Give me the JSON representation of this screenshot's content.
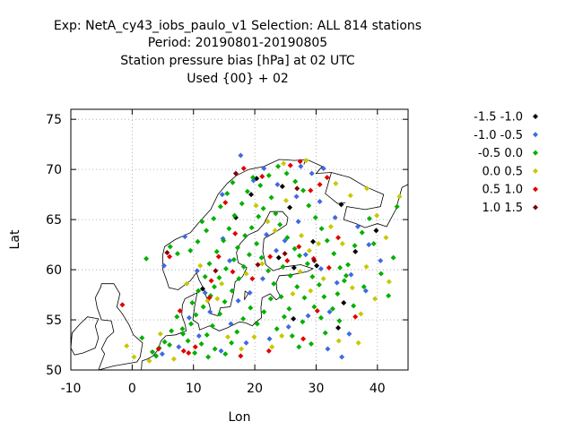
{
  "chart_data": {
    "type": "scatter",
    "title_lines": [
      "Exp: NetA_cy43_iobs_paulo_v1   Selection: ALL    814 stations",
      "Period: 20190801-20190805",
      "Station pressure bias [hPa] at  02 UTC",
      "Used {00} + 02"
    ],
    "xlabel": "Lon",
    "ylabel": "Lat",
    "xlim": [
      -10,
      45
    ],
    "ylim": [
      50,
      76
    ],
    "xticks": [
      -10,
      0,
      10,
      20,
      30,
      40
    ],
    "yticks": [
      50,
      55,
      60,
      65,
      70,
      75
    ],
    "grid": true,
    "legend_position": "right",
    "series": [
      {
        "name": "-1.5 -1.0",
        "color": "#000000",
        "points": [
          [
            20.3,
            69.1
          ],
          [
            24.5,
            68.3
          ],
          [
            25.7,
            66.2
          ],
          [
            23.9,
            61.2
          ],
          [
            26.4,
            60.2
          ],
          [
            33.6,
            54.2
          ],
          [
            26.3,
            55.1
          ],
          [
            30.1,
            60.4
          ],
          [
            16.9,
            65.2
          ],
          [
            11.5,
            58.1
          ],
          [
            19.4,
            67.5
          ],
          [
            34.1,
            66.5
          ],
          [
            36.4,
            61.8
          ],
          [
            39.8,
            63.9
          ],
          [
            34.5,
            56.7
          ],
          [
            29.5,
            62.8
          ]
        ]
      },
      {
        "name": "-1.0 -0.5",
        "color": "#4169e1",
        "points": [
          [
            5.2,
            60.4
          ],
          [
            8.6,
            63.3
          ],
          [
            10.6,
            59.9
          ],
          [
            11.9,
            57.7
          ],
          [
            14.8,
            63.1
          ],
          [
            15.9,
            60.9
          ],
          [
            19.2,
            57.7
          ],
          [
            21.3,
            59.1
          ],
          [
            21.9,
            63.5
          ],
          [
            23.5,
            61.9
          ],
          [
            24.9,
            62.9
          ],
          [
            27.1,
            64.8
          ],
          [
            28.3,
            61.5
          ],
          [
            30.8,
            60.1
          ],
          [
            33.4,
            58.7
          ],
          [
            35.7,
            59.5
          ],
          [
            32.2,
            55.8
          ],
          [
            28.7,
            55.4
          ],
          [
            25.5,
            54.3
          ],
          [
            22.4,
            53.1
          ],
          [
            18.6,
            52.7
          ],
          [
            16.1,
            54.6
          ],
          [
            14.5,
            51.9
          ],
          [
            10.9,
            53.4
          ],
          [
            7.6,
            52.3
          ],
          [
            4.9,
            51.6
          ],
          [
            9.3,
            55.2
          ],
          [
            12.7,
            55.8
          ],
          [
            17.3,
            56.9
          ],
          [
            14.7,
            67.5
          ],
          [
            19.8,
            68.9
          ],
          [
            27.5,
            70.3
          ],
          [
            29.3,
            69.6
          ],
          [
            31.2,
            70.1
          ],
          [
            17.7,
            71.4
          ],
          [
            21.5,
            70.1
          ],
          [
            23.7,
            68.5
          ],
          [
            26.8,
            67.3
          ],
          [
            30.6,
            66.8
          ],
          [
            33.1,
            65.2
          ],
          [
            36.8,
            64.3
          ],
          [
            38.6,
            62.5
          ],
          [
            40.5,
            60.9
          ],
          [
            38.1,
            57.9
          ],
          [
            35.4,
            53.6
          ],
          [
            31.9,
            52.1
          ],
          [
            34.2,
            51.3
          ]
        ]
      },
      {
        "name": "-0.5 0.0",
        "color": "#00b000",
        "points": [
          [
            1.6,
            53.2
          ],
          [
            3.9,
            51.4
          ],
          [
            6.1,
            52.5
          ],
          [
            8.3,
            53.6
          ],
          [
            9.6,
            54.6
          ],
          [
            10.4,
            55.5
          ],
          [
            11.6,
            56.3
          ],
          [
            12.8,
            57.4
          ],
          [
            13.4,
            58.3
          ],
          [
            14.2,
            59.2
          ],
          [
            15.3,
            60.1
          ],
          [
            16.6,
            61.0
          ],
          [
            17.2,
            62.2
          ],
          [
            18.4,
            63.4
          ],
          [
            19.5,
            64.2
          ],
          [
            20.6,
            65.3
          ],
          [
            21.4,
            66.1
          ],
          [
            22.7,
            67.2
          ],
          [
            23.4,
            65.6
          ],
          [
            24.1,
            64.5
          ],
          [
            25.3,
            63.2
          ],
          [
            26.5,
            62.1
          ],
          [
            27.3,
            61.4
          ],
          [
            28.6,
            60.6
          ],
          [
            29.4,
            59.3
          ],
          [
            30.5,
            58.5
          ],
          [
            31.3,
            57.3
          ],
          [
            32.7,
            56.1
          ],
          [
            33.5,
            57.6
          ],
          [
            34.6,
            58.9
          ],
          [
            35.2,
            60.5
          ],
          [
            36.3,
            62.4
          ],
          [
            37.5,
            63.7
          ],
          [
            38.7,
            65.1
          ],
          [
            39.4,
            62.6
          ],
          [
            40.6,
            59.6
          ],
          [
            41.8,
            57.4
          ],
          [
            43.2,
            66.3
          ],
          [
            42.6,
            61.2
          ],
          [
            37.8,
            58.3
          ],
          [
            36.1,
            56.4
          ],
          [
            33.8,
            54.9
          ],
          [
            31.5,
            53.7
          ],
          [
            29.2,
            52.6
          ],
          [
            27.8,
            54.8
          ],
          [
            25.6,
            56.1
          ],
          [
            24.3,
            57.3
          ],
          [
            23.1,
            58.6
          ],
          [
            22.2,
            59.9
          ],
          [
            21.1,
            61.2
          ],
          [
            20.3,
            62.6
          ],
          [
            19.1,
            61.5
          ],
          [
            18.2,
            60.3
          ],
          [
            17.4,
            59.1
          ],
          [
            16.3,
            57.9
          ],
          [
            15.1,
            56.8
          ],
          [
            14.3,
            55.6
          ],
          [
            13.1,
            54.4
          ],
          [
            12.2,
            53.5
          ],
          [
            11.3,
            52.6
          ],
          [
            10.2,
            51.7
          ],
          [
            9.1,
            52.9
          ],
          [
            8.2,
            54.1
          ],
          [
            7.3,
            55.3
          ],
          [
            6.4,
            53.9
          ],
          [
            5.3,
            52.8
          ],
          [
            4.4,
            52.2
          ],
          [
            3.3,
            51.8
          ],
          [
            9.8,
            56.7
          ],
          [
            10.8,
            57.9
          ],
          [
            11.9,
            59.3
          ],
          [
            12.6,
            60.6
          ],
          [
            13.8,
            61.8
          ],
          [
            14.9,
            62.9
          ],
          [
            15.8,
            64.1
          ],
          [
            16.7,
            65.4
          ],
          [
            17.9,
            66.6
          ],
          [
            18.8,
            67.8
          ],
          [
            19.7,
            69.2
          ],
          [
            20.9,
            68.4
          ],
          [
            22.3,
            69.4
          ],
          [
            23.8,
            70.3
          ],
          [
            25.2,
            69.6
          ],
          [
            26.6,
            68.8
          ],
          [
            27.9,
            67.9
          ],
          [
            28.8,
            66.4
          ],
          [
            29.9,
            65.2
          ],
          [
            30.9,
            64.1
          ],
          [
            31.8,
            62.9
          ],
          [
            32.9,
            61.6
          ],
          [
            33.9,
            60.2
          ],
          [
            34.9,
            59.4
          ],
          [
            23.6,
            54.1
          ],
          [
            24.8,
            55.3
          ],
          [
            26.1,
            53.4
          ],
          [
            27.2,
            52.3
          ],
          [
            20.4,
            54.6
          ],
          [
            21.5,
            55.8
          ],
          [
            22.6,
            57.1
          ],
          [
            19.3,
            56.2
          ],
          [
            18.1,
            55.1
          ],
          [
            17.1,
            53.8
          ],
          [
            16.2,
            52.7
          ],
          [
            15.2,
            51.6
          ],
          [
            13.5,
            52.1
          ],
          [
            12.4,
            51.3
          ],
          [
            2.3,
            61.1
          ],
          [
            6.2,
            62.3
          ],
          [
            7.4,
            61.6
          ],
          [
            9.5,
            61.9
          ],
          [
            10.7,
            62.8
          ],
          [
            12.1,
            63.9
          ],
          [
            13.3,
            65.1
          ],
          [
            14.4,
            66.3
          ],
          [
            15.5,
            67.6
          ],
          [
            16.4,
            68.7
          ],
          [
            11.4,
            64.8
          ],
          [
            24.6,
            60.3
          ],
          [
            25.8,
            59.4
          ],
          [
            26.9,
            58.3
          ],
          [
            28.1,
            57.2
          ],
          [
            29.7,
            56.3
          ],
          [
            30.8,
            55.2
          ]
        ]
      },
      {
        "name": "0.0 0.5",
        "color": "#c8c800",
        "points": [
          [
            -0.9,
            52.4
          ],
          [
            0.3,
            51.3
          ],
          [
            2.8,
            50.9
          ],
          [
            4.6,
            53.6
          ],
          [
            6.8,
            51.1
          ],
          [
            12.3,
            56.9
          ],
          [
            14.6,
            58.6
          ],
          [
            18.6,
            59.6
          ],
          [
            21.2,
            60.6
          ],
          [
            23.3,
            63.9
          ],
          [
            25.1,
            66.9
          ],
          [
            27.6,
            63.4
          ],
          [
            28.9,
            61.9
          ],
          [
            30.4,
            62.6
          ],
          [
            32.4,
            64.3
          ],
          [
            34.3,
            62.6
          ],
          [
            35.9,
            58.2
          ],
          [
            37.3,
            55.6
          ],
          [
            39.6,
            57.1
          ],
          [
            31.2,
            59.1
          ],
          [
            29.1,
            57.9
          ],
          [
            27.4,
            59.8
          ],
          [
            26.2,
            57.6
          ],
          [
            24.4,
            53.4
          ],
          [
            22.8,
            52.3
          ],
          [
            19.9,
            53.3
          ],
          [
            17.8,
            52.1
          ],
          [
            15.6,
            53.3
          ],
          [
            13.9,
            57.1
          ],
          [
            11.1,
            60.4
          ],
          [
            8.9,
            58.6
          ],
          [
            24.7,
            70.6
          ],
          [
            28.4,
            70.9
          ],
          [
            33.2,
            68.6
          ],
          [
            35.6,
            67.4
          ],
          [
            38.3,
            68.1
          ],
          [
            39.9,
            65.4
          ],
          [
            41.4,
            63.2
          ],
          [
            43.6,
            67.3
          ],
          [
            36.9,
            52.7
          ],
          [
            33.7,
            52.9
          ],
          [
            41.9,
            58.8
          ],
          [
            38.2,
            60.3
          ],
          [
            22.1,
            64.8
          ],
          [
            20.2,
            66.4
          ]
        ]
      },
      {
        "name": "0.5 1.0",
        "color": "#e00000",
        "points": [
          [
            -1.6,
            56.5
          ],
          [
            4.3,
            52.1
          ],
          [
            9.2,
            51.7
          ],
          [
            10.3,
            52.3
          ],
          [
            8.4,
            51.9
          ],
          [
            12.6,
            57.2
          ],
          [
            16.4,
            59.8
          ],
          [
            19.6,
            59.1
          ],
          [
            22.5,
            61.3
          ],
          [
            25.3,
            60.9
          ],
          [
            27.2,
            62.3
          ],
          [
            29.6,
            61.1
          ],
          [
            32.1,
            60.2
          ],
          [
            30.2,
            55.9
          ],
          [
            27.9,
            53.1
          ],
          [
            22.3,
            51.9
          ],
          [
            16.8,
            63.6
          ],
          [
            15.2,
            66.7
          ],
          [
            18.2,
            70.1
          ],
          [
            21.2,
            69.3
          ],
          [
            25.8,
            70.4
          ],
          [
            27.4,
            70.8
          ],
          [
            29.1,
            67.9
          ],
          [
            30.6,
            68.5
          ],
          [
            31.8,
            69.2
          ],
          [
            33.6,
            63.2
          ],
          [
            36.4,
            55.3
          ],
          [
            17.7,
            51.4
          ],
          [
            12.9,
            58.9
          ],
          [
            14.1,
            61.3
          ],
          [
            6.1,
            61.3
          ],
          [
            7.8,
            55.9
          ]
        ]
      },
      {
        "name": "1.0 1.5",
        "color": "#800000",
        "points": [
          [
            5.7,
            61.7
          ],
          [
            13.6,
            59.9
          ],
          [
            26.9,
            68.1
          ],
          [
            20.5,
            60.5
          ],
          [
            16.9,
            69.6
          ],
          [
            29.7,
            60.9
          ],
          [
            24.9,
            61.6
          ]
        ]
      }
    ]
  }
}
